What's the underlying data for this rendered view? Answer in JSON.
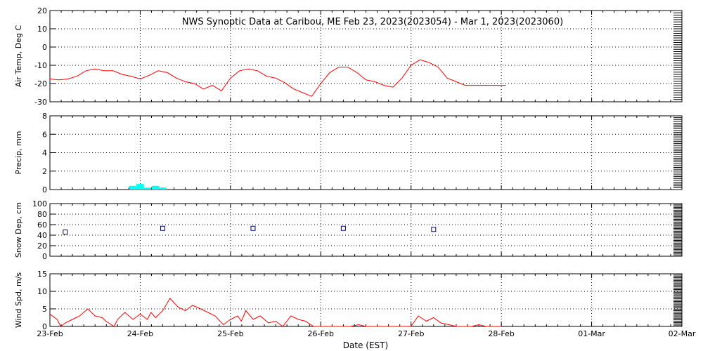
{
  "title": "NWS Synoptic Data at Caribou, ME   Feb 23, 2023(2023054) - Mar  1, 2023(2023060)",
  "xlabel": "Date (EST)",
  "x_ticks": [
    "23-Feb",
    "24-Feb",
    "25-Feb",
    "26-Feb",
    "27-Feb",
    "28-Feb",
    "01-Mar",
    "02-Mar"
  ],
  "colors": {
    "temp_line": "#ff0000",
    "precip_bar": "#00ffff",
    "snow_marker": "#000080",
    "wind_line": "#ff0000",
    "grid": "#000000"
  },
  "chart_data": [
    {
      "type": "line",
      "ylabel": "Air Temp, Deg C",
      "ylim": [
        -30,
        20
      ],
      "yticks": [
        20,
        10,
        0,
        -10,
        -20,
        -30
      ],
      "xlim": [
        0,
        7
      ],
      "grid": true,
      "x": [
        0,
        0.1,
        0.2,
        0.3,
        0.4,
        0.5,
        0.6,
        0.7,
        0.8,
        0.9,
        1.0,
        1.1,
        1.2,
        1.3,
        1.4,
        1.5,
        1.6,
        1.7,
        1.8,
        1.9,
        2.0,
        2.1,
        2.15,
        2.25,
        2.3,
        2.4,
        2.5,
        2.6,
        2.7,
        2.8,
        2.9,
        3.0,
        3.1,
        3.2,
        3.3,
        3.4,
        3.5,
        3.6,
        3.7,
        3.8,
        3.9,
        4.0,
        4.1,
        4.2,
        4.3,
        4.4,
        4.5,
        4.6,
        4.7,
        4.8,
        4.9,
        5.0,
        5.05
      ],
      "values": [
        -17.5,
        -18,
        -17.5,
        -16,
        -13,
        -12,
        -13,
        -13,
        -15,
        -16,
        -17.5,
        -15.5,
        -13,
        -14,
        -17,
        -19,
        -20,
        -23,
        -21,
        -24,
        -22,
        -17,
        -14,
        -12,
        -12.5,
        -16,
        -17,
        -20,
        -25,
        -27,
        -20,
        -14,
        -11,
        -11,
        -14,
        -18,
        -19,
        -21,
        -22,
        -17,
        -10,
        -7,
        -8.5,
        -11,
        -17,
        -19,
        -21,
        -20,
        -18,
        -19,
        -20,
        -21,
        -21
      ],
      "line_x": [
        0,
        0.1,
        0.2,
        0.3,
        0.4,
        0.5,
        0.6,
        0.7,
        0.8,
        0.9,
        1.0,
        1.1,
        1.2,
        1.3,
        1.4,
        1.5,
        1.6,
        1.7,
        1.8,
        1.9,
        2.0,
        2.1,
        2.2,
        2.3,
        2.4,
        2.5,
        2.6,
        2.7,
        2.8,
        2.9,
        3.0,
        3.1,
        3.2,
        3.3,
        3.4,
        3.5,
        3.6,
        3.7,
        3.8,
        3.9,
        4.0,
        4.1,
        4.2,
        4.3,
        4.4,
        4.5,
        4.6,
        4.7,
        4.8,
        4.9,
        5.0,
        5.05
      ],
      "line_values": [
        -17.5,
        -18,
        -17.5,
        -16,
        -13,
        -12,
        -13,
        -13,
        -15,
        -16,
        -17.5,
        -15.5,
        -13,
        -14,
        -17,
        -19,
        -20,
        -23,
        -21,
        -24,
        -17,
        -13,
        -12,
        -13,
        -16,
        -17,
        -19.5,
        -23,
        -25,
        -27,
        -20,
        -14,
        -11,
        -11,
        -14,
        -18,
        -19,
        -21,
        -22,
        -17,
        -10,
        -7,
        -8.5,
        -11,
        -17,
        -19,
        -21,
        -21,
        -21,
        -21,
        -21,
        -21
      ]
    },
    {
      "type": "bar",
      "ylabel": "Precip, mm",
      "ylim": [
        0,
        8
      ],
      "yticks": [
        8,
        6,
        4,
        2,
        0
      ],
      "xlim": [
        0,
        7
      ],
      "grid": true,
      "x": [
        0.92,
        1.0,
        1.08,
        1.17,
        1.25
      ],
      "values": [
        0.4,
        0.6,
        0.2,
        0.4,
        0.2
      ]
    },
    {
      "type": "scatter",
      "ylabel": "Snow Dep, cm",
      "ylim": [
        0,
        100
      ],
      "yticks": [
        100,
        80,
        60,
        40,
        20,
        0
      ],
      "xlim": [
        0,
        7
      ],
      "grid": true,
      "x": [
        0.17,
        1.25,
        2.25,
        3.25,
        4.25
      ],
      "values": [
        46,
        53,
        53,
        53,
        51
      ]
    },
    {
      "type": "line",
      "ylabel": "Wind Spd, m/s",
      "ylim": [
        0,
        15
      ],
      "yticks": [
        15,
        10,
        5,
        0
      ],
      "xlim": [
        0,
        7
      ],
      "grid": true,
      "x": [
        0,
        0.08,
        0.12,
        0.17,
        0.25,
        0.33,
        0.42,
        0.5,
        0.58,
        0.62,
        0.71,
        0.75,
        0.83,
        0.92,
        1.0,
        1.08,
        1.12,
        1.17,
        1.25,
        1.33,
        1.42,
        1.5,
        1.58,
        1.67,
        1.75,
        1.83,
        1.92,
        2.0,
        2.08,
        2.12,
        2.17,
        2.25,
        2.33,
        2.42,
        2.5,
        2.58,
        2.67,
        2.75,
        2.83,
        2.92,
        3.0,
        3.08,
        3.17,
        3.25,
        3.33,
        3.42,
        3.5,
        3.58,
        3.67,
        3.75,
        3.83,
        3.92,
        4.0,
        4.08,
        4.17,
        4.25,
        4.33,
        4.42,
        4.5,
        4.58,
        4.67,
        4.75,
        4.83,
        4.92,
        5.0
      ],
      "values": [
        3.5,
        2,
        0,
        1,
        2,
        3,
        5,
        3,
        2.5,
        1.5,
        0,
        2,
        4,
        2,
        3.5,
        2,
        4,
        2.5,
        4.5,
        8,
        5.5,
        4.5,
        6,
        5,
        4,
        3,
        0.5,
        2,
        3,
        1.5,
        4.5,
        2,
        3,
        1,
        1.5,
        0,
        3,
        2,
        1.5,
        0,
        0,
        0,
        0,
        0,
        0,
        0.5,
        0,
        0,
        0,
        0,
        0,
        0,
        0,
        3,
        1.5,
        2.5,
        1,
        0.5,
        0,
        0,
        0,
        0.5,
        0,
        0,
        0
      ]
    }
  ]
}
